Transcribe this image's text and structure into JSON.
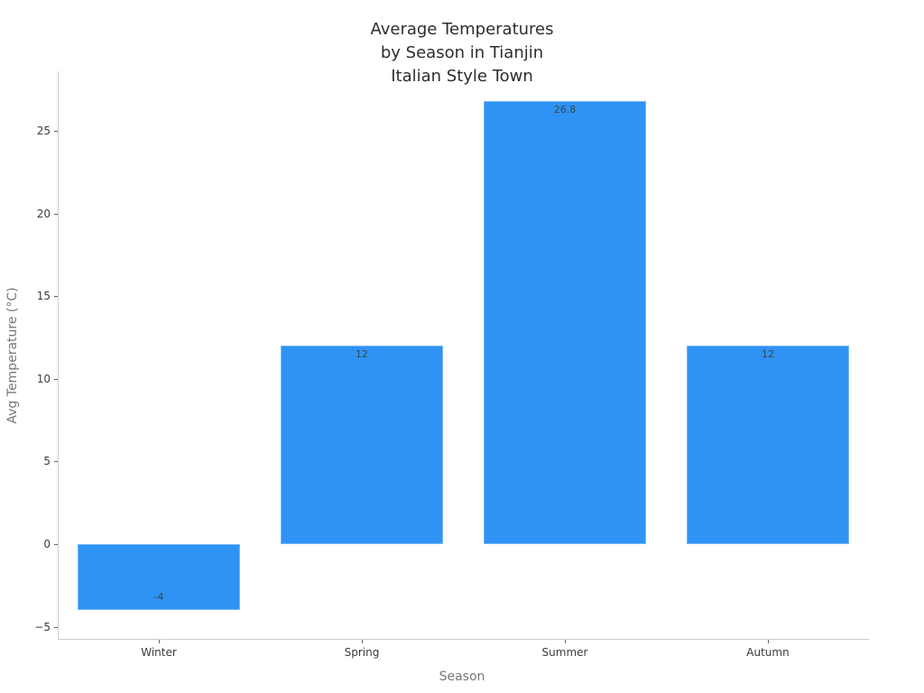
{
  "chart_data": {
    "type": "bar",
    "title": "Average Temperatures\nby Season in Tianjin\nItalian Style Town",
    "title_lines": [
      "Average Temperatures",
      "by Season in Tianjin",
      "Italian Style Town"
    ],
    "xlabel": "Season",
    "ylabel": "Avg Temperature (°C)",
    "categories": [
      "Winter",
      "Spring",
      "Summer",
      "Autumn"
    ],
    "values": [
      -4,
      12,
      26.8,
      12
    ],
    "value_labels": [
      "-4",
      "12",
      "26.8",
      "12"
    ],
    "yticks": [
      -5,
      0,
      5,
      10,
      15,
      20,
      25
    ],
    "ytick_labels": [
      "−5",
      "0",
      "5",
      "10",
      "15",
      "20",
      "25"
    ],
    "ylim": [
      -5.73,
      28.61
    ],
    "grid": false,
    "legend": null,
    "colors": {
      "bar": "#2e93f5",
      "title": "#2d2d2d",
      "tick_label": "#3b3b3b",
      "axis_title": "#777777",
      "spine": "#cbcbcb",
      "value_label": "#37474f",
      "background": "#ffffff"
    }
  }
}
